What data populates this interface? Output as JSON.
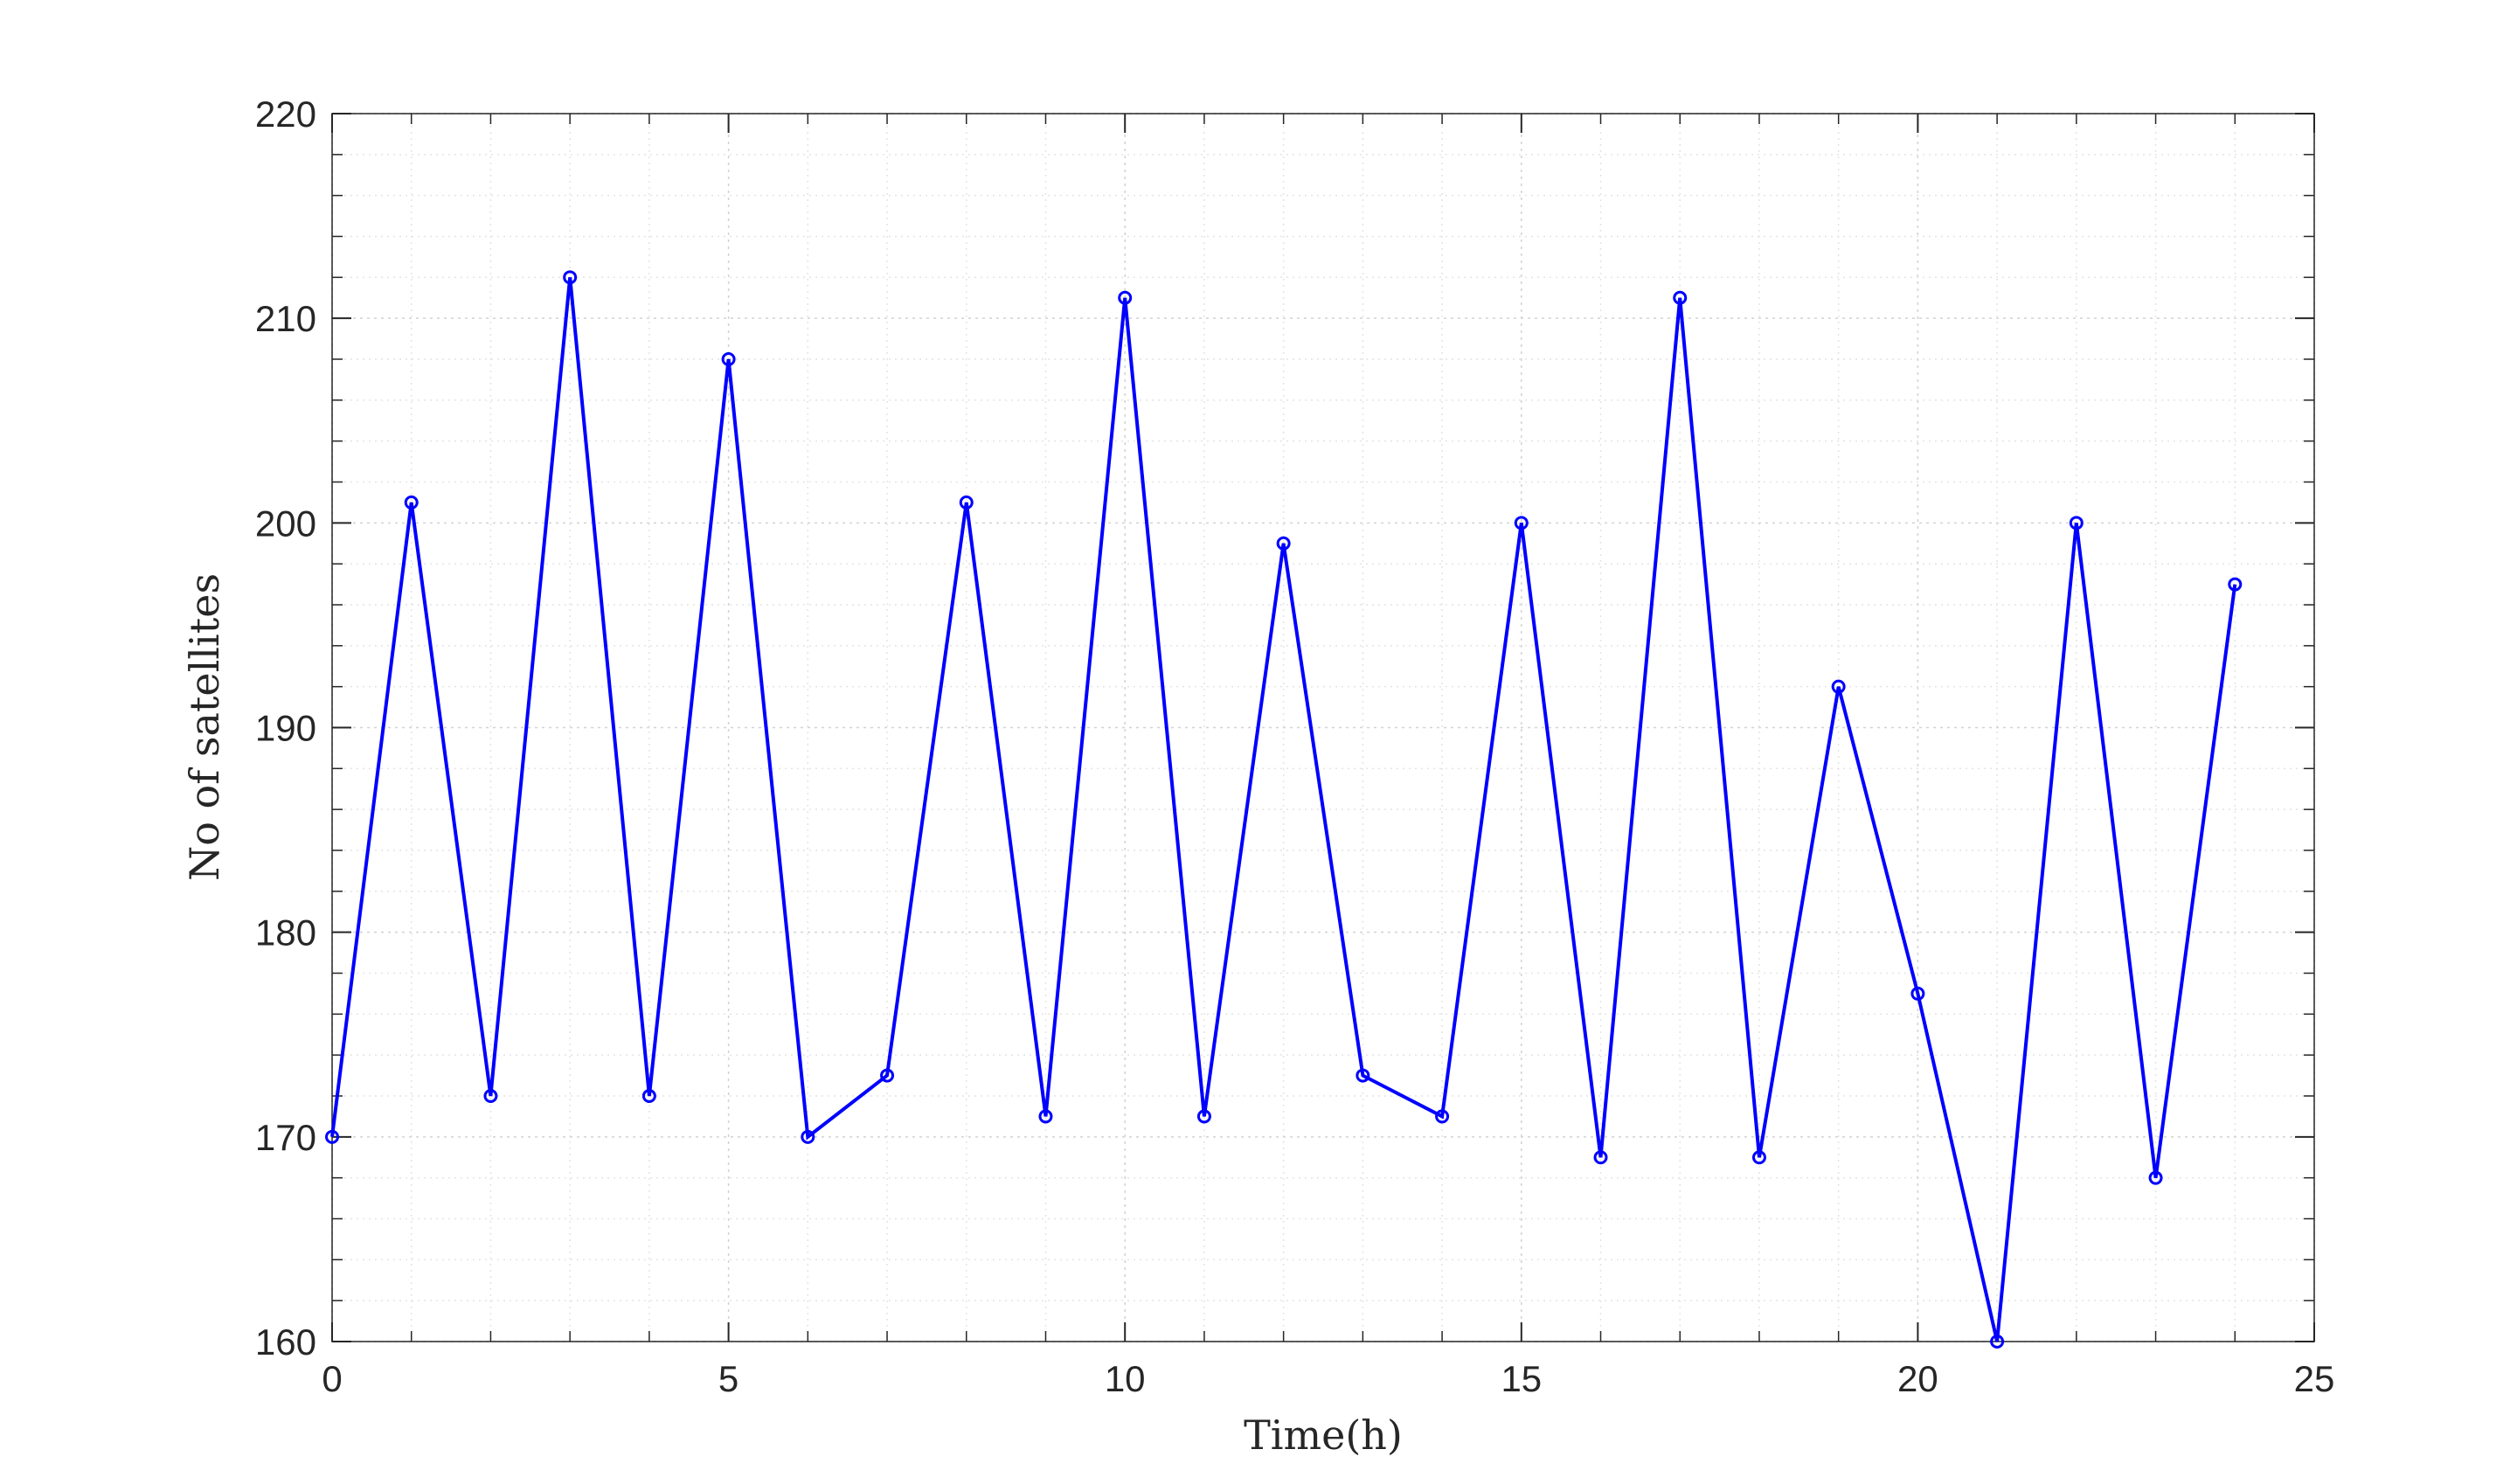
{
  "chart_data": {
    "type": "line",
    "title": "",
    "xlabel": "Time(h)",
    "ylabel": "No of satellites",
    "xlim": [
      0,
      25
    ],
    "ylim": [
      160,
      220
    ],
    "x_ticks": [
      0,
      5,
      10,
      15,
      20,
      25
    ],
    "y_ticks": [
      160,
      170,
      180,
      190,
      200,
      210,
      220
    ],
    "grid": true,
    "minor_grid": true,
    "series": [
      {
        "color": "#0000ff",
        "marker": "circle",
        "x": [
          0,
          1,
          2,
          3,
          4,
          5,
          6,
          7,
          8,
          9,
          10,
          11,
          12,
          13,
          14,
          15,
          16,
          17,
          18,
          19,
          20,
          21,
          22,
          23,
          24
        ],
        "y": [
          170,
          201,
          172,
          212,
          172,
          208,
          170,
          173,
          201,
          171,
          211,
          171,
          199,
          173,
          171,
          200,
          169,
          211,
          169,
          192,
          177,
          160,
          200,
          168,
          197
        ]
      }
    ]
  }
}
